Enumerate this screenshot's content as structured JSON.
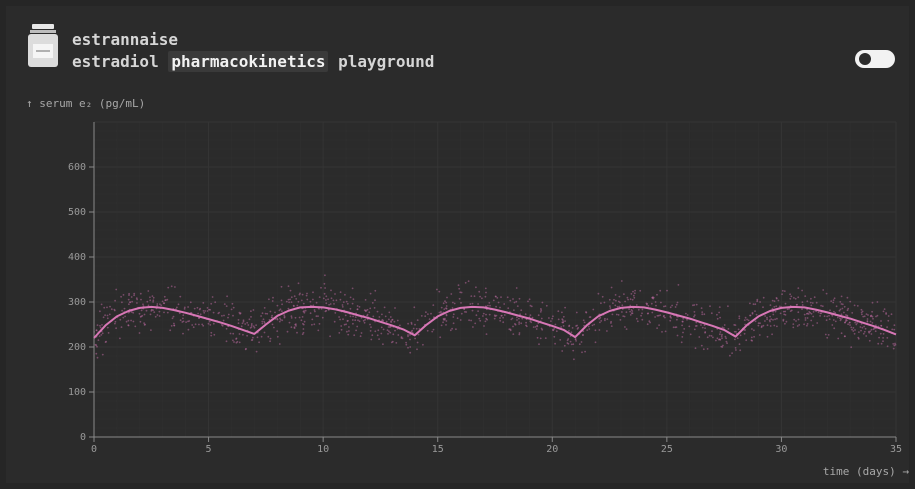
{
  "header": {
    "app_name": "estrannaise",
    "subtitle_pre": "estradiol",
    "subtitle_highlight": "pharmacokinetics",
    "subtitle_post": "playground",
    "logo_icon": "medicine-vial-icon",
    "toggle_icon": "toggle-switch-icon"
  },
  "colors": {
    "background": "#2b2b2b",
    "curve": "#d877b6",
    "scatter": "#b8689c",
    "grid": "#363636",
    "axis": "#8a8a8a"
  },
  "chart_data": {
    "type": "line",
    "title": "",
    "ylabel": "↑ serum e₂ (pg/mL)",
    "xlabel": "time (days) →",
    "xlim": [
      0,
      35
    ],
    "ylim": [
      0,
      700
    ],
    "x_ticks": [
      0,
      5,
      10,
      15,
      20,
      25,
      30,
      35
    ],
    "y_ticks": [
      0,
      100,
      200,
      300,
      400,
      500,
      600
    ],
    "grid": true,
    "dose_interval_days": 7,
    "series": [
      {
        "kind": "line",
        "x": [
          0,
          0.5,
          1,
          1.5,
          2,
          2.5,
          3,
          3.5,
          4,
          4.5,
          5,
          5.5,
          6,
          6.5,
          7,
          7.5,
          8,
          8.5,
          9,
          9.5,
          10,
          10.5,
          11,
          11.5,
          12,
          12.5,
          13,
          13.5,
          14,
          14.5,
          15,
          15.5,
          16,
          16.5,
          17,
          17.5,
          18,
          18.5,
          19,
          19.5,
          20,
          20.5,
          21,
          21.5,
          22,
          22.5,
          23,
          23.5,
          24,
          24.5,
          25,
          25.5,
          26,
          26.5,
          27,
          27.5,
          28,
          28.5,
          29,
          29.5,
          30,
          30.5,
          31,
          31.5,
          32,
          32.5,
          33,
          33.5,
          34,
          34.5,
          35
        ],
        "y": [
          220,
          248,
          268,
          280,
          287,
          289,
          287,
          282,
          276,
          269,
          262,
          255,
          247,
          238,
          229,
          250,
          269,
          281,
          288,
          289,
          288,
          284,
          278,
          271,
          264,
          256,
          248,
          239,
          226,
          249,
          268,
          280,
          287,
          289,
          288,
          283,
          277,
          270,
          263,
          255,
          247,
          238,
          222,
          248,
          268,
          280,
          287,
          289,
          288,
          283,
          277,
          270,
          263,
          255,
          247,
          238,
          223,
          249,
          268,
          280,
          287,
          289,
          288,
          283,
          277,
          270,
          263,
          255,
          247,
          238,
          228
        ]
      },
      {
        "kind": "scatter",
        "scatter_spread_pg_ml": 35,
        "points_per_day": 40
      }
    ]
  }
}
